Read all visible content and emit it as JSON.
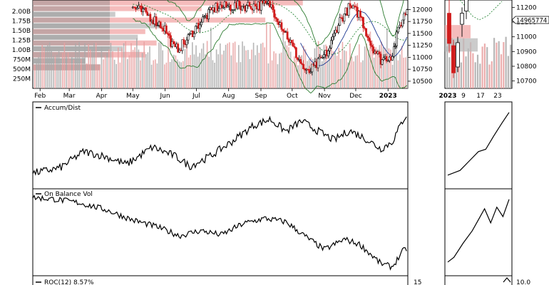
{
  "chart_data": [
    {
      "id": "price-main",
      "type": "candlestick",
      "volume_axis_labels": [
        "2.00B",
        "1.75B",
        "1.50B",
        "1.25B",
        "1.00B",
        "750M",
        "500M",
        "250M"
      ],
      "volume_axis_values": [
        2000,
        1750,
        1500,
        1250,
        1000,
        750,
        500,
        250
      ],
      "price_axis_labels": [
        "12000",
        "11750",
        "11500",
        "11250",
        "11000",
        "10750",
        "10500"
      ],
      "price_axis_values": [
        12000,
        11750,
        11500,
        11250,
        11000,
        10750,
        10500
      ],
      "price_range": [
        10350,
        12200
      ],
      "volume_range": [
        0,
        2300
      ],
      "months": [
        "Feb",
        "Mar",
        "Apr",
        "May",
        "Jun",
        "Jul",
        "Aug",
        "Sep",
        "Oct",
        "Nov",
        "Dec",
        "2023"
      ],
      "price_series_anchors": [
        [
          "2022-05-01",
          12050
        ],
        [
          "2022-05-15",
          11900
        ],
        [
          "2022-06-01",
          11600
        ],
        [
          "2022-06-10",
          11150
        ],
        [
          "2022-06-20",
          11300
        ],
        [
          "2022-07-01",
          11650
        ],
        [
          "2022-07-10",
          11850
        ],
        [
          "2022-07-20",
          12050
        ],
        [
          "2022-09-10",
          12100
        ],
        [
          "2022-09-25",
          11500
        ],
        [
          "2022-10-05",
          11050
        ],
        [
          "2022-10-15",
          10650
        ],
        [
          "2022-10-25",
          10850
        ],
        [
          "2022-11-05",
          11150
        ],
        [
          "2022-11-15",
          11750
        ],
        [
          "2022-11-25",
          12050
        ],
        [
          "2022-12-05",
          11900
        ],
        [
          "2022-12-15",
          11300
        ],
        [
          "2022-12-25",
          10950
        ],
        [
          "2023-01-05",
          11050
        ],
        [
          "2023-01-12",
          11650
        ],
        [
          "2023-01-20",
          12050
        ]
      ]
    },
    {
      "id": "accum-dist",
      "type": "line",
      "title": "Accum/Dist",
      "x_range": [
        "2022-01-25",
        "2023-01-20"
      ],
      "y_range": [
        0,
        100
      ],
      "anchors": [
        [
          "2022-01-25",
          18
        ],
        [
          "2022-02-20",
          24
        ],
        [
          "2022-03-15",
          43
        ],
        [
          "2022-04-05",
          37
        ],
        [
          "2022-04-25",
          28
        ],
        [
          "2022-05-20",
          48
        ],
        [
          "2022-06-10",
          38
        ],
        [
          "2022-06-25",
          26
        ],
        [
          "2022-07-15",
          38
        ],
        [
          "2022-08-05",
          55
        ],
        [
          "2022-08-25",
          73
        ],
        [
          "2022-09-10",
          80
        ],
        [
          "2022-09-25",
          66
        ],
        [
          "2022-10-10",
          78
        ],
        [
          "2022-10-25",
          67
        ],
        [
          "2022-11-10",
          56
        ],
        [
          "2022-11-25",
          67
        ],
        [
          "2022-12-10",
          58
        ],
        [
          "2022-12-25",
          46
        ],
        [
          "2023-01-05",
          54
        ],
        [
          "2023-01-15",
          78
        ],
        [
          "2023-01-20",
          88
        ]
      ]
    },
    {
      "id": "obv",
      "type": "line",
      "title": "On Balance Vol",
      "x_range": [
        "2022-01-25",
        "2023-01-20"
      ],
      "y_range": [
        0,
        100
      ],
      "anchors": [
        [
          "2022-01-25",
          90
        ],
        [
          "2022-02-15",
          88
        ],
        [
          "2022-03-10",
          84
        ],
        [
          "2022-04-05",
          76
        ],
        [
          "2022-05-01",
          64
        ],
        [
          "2022-05-25",
          56
        ],
        [
          "2022-06-15",
          46
        ],
        [
          "2022-07-05",
          52
        ],
        [
          "2022-07-25",
          47
        ],
        [
          "2022-08-15",
          60
        ],
        [
          "2022-09-05",
          66
        ],
        [
          "2022-09-25",
          62
        ],
        [
          "2022-10-15",
          44
        ],
        [
          "2022-11-01",
          30
        ],
        [
          "2022-11-20",
          42
        ],
        [
          "2022-12-05",
          36
        ],
        [
          "2022-12-25",
          14
        ],
        [
          "2023-01-05",
          10
        ],
        [
          "2023-01-15",
          28
        ],
        [
          "2023-01-20",
          32
        ]
      ]
    },
    {
      "id": "roc",
      "type": "line",
      "title": "ROC(12) 8.57%",
      "axis_label": "15",
      "side_axis_label": "10.0"
    },
    {
      "id": "price-side",
      "type": "candlestick",
      "price_axis_labels": [
        "11200",
        "11100",
        "11000",
        "10900",
        "10800",
        "10700"
      ],
      "price_axis_values": [
        11200,
        11100,
        11000,
        10900,
        10800,
        10700
      ],
      "price_range": [
        10650,
        11250
      ],
      "x_labels": [
        "2023",
        "9",
        "17",
        "23"
      ],
      "last_price_label": "14965774"
    },
    {
      "id": "accum-dist-side",
      "type": "line",
      "anchors_norm": [
        [
          0,
          0.12
        ],
        [
          0.2,
          0.18
        ],
        [
          0.35,
          0.3
        ],
        [
          0.5,
          0.42
        ],
        [
          0.62,
          0.45
        ],
        [
          0.75,
          0.62
        ],
        [
          0.88,
          0.78
        ],
        [
          1.0,
          0.92
        ]
      ]
    },
    {
      "id": "obv-side",
      "type": "line",
      "anchors_norm": [
        [
          0,
          0.12
        ],
        [
          0.1,
          0.18
        ],
        [
          0.25,
          0.36
        ],
        [
          0.4,
          0.52
        ],
        [
          0.5,
          0.66
        ],
        [
          0.6,
          0.8
        ],
        [
          0.7,
          0.62
        ],
        [
          0.8,
          0.82
        ],
        [
          0.9,
          0.7
        ],
        [
          1.0,
          0.92
        ]
      ]
    }
  ]
}
